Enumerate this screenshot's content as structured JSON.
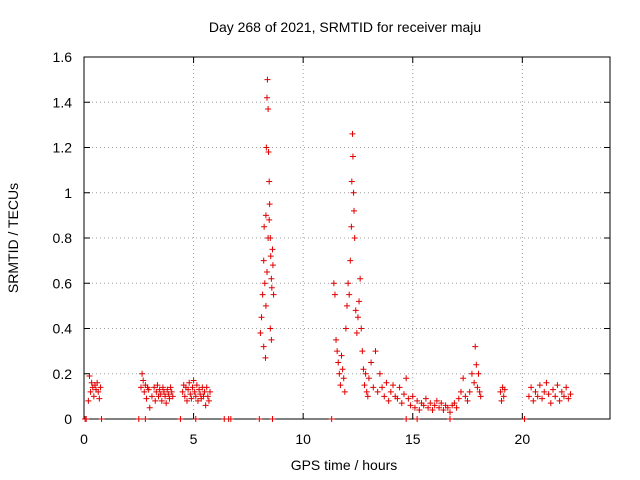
{
  "chart_data": {
    "type": "scatter",
    "title": "Day 268 of 2021, SRMTID for receiver maju",
    "xlabel": "GPS time / hours",
    "ylabel": "SRMTID / TECUs",
    "xlim": [
      0,
      24
    ],
    "ylim": [
      0,
      1.6
    ],
    "xticks": [
      0,
      5,
      10,
      15,
      20
    ],
    "xtick_labels": [
      "0",
      "5",
      "10",
      "15",
      "20"
    ],
    "yticks": [
      0,
      0.2,
      0.4,
      0.6,
      0.8,
      1.0,
      1.2,
      1.4,
      1.6
    ],
    "ytick_labels": [
      "0",
      "0.2",
      "0.4",
      "0.6",
      "0.8",
      "1",
      "1.2",
      "1.4",
      "1.6"
    ],
    "grid": true,
    "marker": "+",
    "color": "#e00000",
    "series": [
      {
        "name": "SRMTID",
        "points": [
          [
            0.05,
            0.0
          ],
          [
            0.1,
            0.0
          ],
          [
            0.2,
            0.08
          ],
          [
            0.25,
            0.19
          ],
          [
            0.3,
            0.12
          ],
          [
            0.35,
            0.16
          ],
          [
            0.4,
            0.14
          ],
          [
            0.45,
            0.1
          ],
          [
            0.5,
            0.15
          ],
          [
            0.55,
            0.13
          ],
          [
            0.6,
            0.16
          ],
          [
            0.65,
            0.12
          ],
          [
            0.7,
            0.09
          ],
          [
            0.75,
            0.14
          ],
          [
            0.8,
            0.0
          ],
          [
            2.5,
            0.0
          ],
          [
            2.6,
            0.14
          ],
          [
            2.65,
            0.2
          ],
          [
            2.7,
            0.17
          ],
          [
            2.75,
            0.12
          ],
          [
            2.8,
            0.15
          ],
          [
            2.85,
            0.09
          ],
          [
            2.9,
            0.14
          ],
          [
            2.95,
            0.13
          ],
          [
            3.0,
            0.05
          ],
          [
            3.1,
            0.1
          ],
          [
            3.2,
            0.14
          ],
          [
            3.25,
            0.08
          ],
          [
            3.3,
            0.12
          ],
          [
            3.35,
            0.15
          ],
          [
            3.4,
            0.1
          ],
          [
            3.45,
            0.13
          ],
          [
            3.5,
            0.11
          ],
          [
            3.55,
            0.08
          ],
          [
            3.6,
            0.14
          ],
          [
            3.65,
            0.12
          ],
          [
            3.7,
            0.1
          ],
          [
            3.75,
            0.07
          ],
          [
            3.8,
            0.13
          ],
          [
            3.85,
            0.11
          ],
          [
            3.9,
            0.09
          ],
          [
            3.95,
            0.14
          ],
          [
            4.0,
            0.12
          ],
          [
            4.05,
            0.1
          ],
          [
            2.8,
            0.0
          ],
          [
            4.4,
            0.0
          ],
          [
            4.5,
            0.12
          ],
          [
            4.55,
            0.15
          ],
          [
            4.6,
            0.1
          ],
          [
            4.65,
            0.14
          ],
          [
            4.7,
            0.08
          ],
          [
            4.75,
            0.13
          ],
          [
            4.8,
            0.16
          ],
          [
            4.85,
            0.11
          ],
          [
            4.9,
            0.09
          ],
          [
            4.95,
            0.14
          ],
          [
            5.0,
            0.17
          ],
          [
            5.05,
            0.12
          ],
          [
            5.1,
            0.1
          ],
          [
            5.15,
            0.15
          ],
          [
            5.2,
            0.08
          ],
          [
            5.25,
            0.13
          ],
          [
            5.3,
            0.11
          ],
          [
            5.35,
            0.09
          ],
          [
            5.4,
            0.14
          ],
          [
            5.45,
            0.1
          ],
          [
            5.5,
            0.12
          ],
          [
            5.55,
            0.06
          ],
          [
            5.6,
            0.14
          ],
          [
            5.65,
            0.1
          ],
          [
            5.7,
            0.08
          ],
          [
            5.75,
            0.12
          ],
          [
            5.1,
            0.0
          ],
          [
            6.4,
            0.0
          ],
          [
            6.6,
            0.0
          ],
          [
            6.7,
            0.0
          ],
          [
            8.0,
            0.0
          ],
          [
            8.05,
            0.38
          ],
          [
            8.1,
            0.45
          ],
          [
            8.15,
            0.55
          ],
          [
            8.2,
            0.7
          ],
          [
            8.22,
            0.85
          ],
          [
            8.25,
            0.6
          ],
          [
            8.28,
            0.27
          ],
          [
            8.3,
            0.9
          ],
          [
            8.32,
            1.2
          ],
          [
            8.35,
            1.42
          ],
          [
            8.37,
            1.5
          ],
          [
            8.4,
            1.37
          ],
          [
            8.42,
            1.18
          ],
          [
            8.45,
            1.05
          ],
          [
            8.47,
            0.95
          ],
          [
            8.5,
            0.8
          ],
          [
            8.52,
            0.72
          ],
          [
            8.55,
            0.62
          ],
          [
            8.57,
            0.58
          ],
          [
            8.6,
            0.75
          ],
          [
            8.62,
            0.68
          ],
          [
            8.65,
            0.55
          ],
          [
            8.3,
            0.5
          ],
          [
            8.35,
            0.65
          ],
          [
            8.4,
            0.8
          ],
          [
            8.45,
            0.88
          ],
          [
            8.5,
            0.4
          ],
          [
            8.55,
            0.35
          ],
          [
            8.2,
            0.32
          ],
          [
            8.6,
            0.0
          ],
          [
            11.3,
            0.0
          ],
          [
            11.4,
            0.6
          ],
          [
            11.45,
            0.55
          ],
          [
            11.5,
            0.35
          ],
          [
            11.55,
            0.3
          ],
          [
            11.6,
            0.25
          ],
          [
            11.65,
            0.2
          ],
          [
            11.7,
            0.15
          ],
          [
            11.75,
            0.28
          ],
          [
            11.8,
            0.22
          ],
          [
            11.85,
            0.18
          ],
          [
            11.9,
            0.12
          ],
          [
            11.95,
            0.4
          ],
          [
            12.0,
            0.5
          ],
          [
            12.05,
            0.6
          ],
          [
            12.1,
            0.55
          ],
          [
            12.15,
            0.7
          ],
          [
            12.2,
            0.85
          ],
          [
            12.22,
            1.05
          ],
          [
            12.25,
            1.26
          ],
          [
            12.27,
            1.16
          ],
          [
            12.3,
            1.0
          ],
          [
            12.32,
            0.92
          ],
          [
            12.35,
            0.8
          ],
          [
            12.4,
            0.48
          ],
          [
            12.45,
            0.38
          ],
          [
            12.5,
            0.45
          ],
          [
            12.55,
            0.52
          ],
          [
            12.6,
            0.62
          ],
          [
            12.65,
            0.4
          ],
          [
            12.7,
            0.3
          ],
          [
            12.75,
            0.22
          ],
          [
            12.8,
            0.15
          ],
          [
            12.85,
            0.2
          ],
          [
            12.9,
            0.12
          ],
          [
            12.95,
            0.1
          ],
          [
            13.0,
            0.18
          ],
          [
            13.1,
            0.25
          ],
          [
            13.2,
            0.14
          ],
          [
            13.3,
            0.3
          ],
          [
            13.4,
            0.12
          ],
          [
            13.5,
            0.2
          ],
          [
            13.6,
            0.14
          ],
          [
            13.7,
            0.1
          ],
          [
            13.8,
            0.16
          ],
          [
            13.9,
            0.08
          ],
          [
            14.0,
            0.12
          ],
          [
            14.1,
            0.15
          ],
          [
            14.2,
            0.1
          ],
          [
            14.3,
            0.09
          ],
          [
            14.4,
            0.14
          ],
          [
            14.5,
            0.07
          ],
          [
            14.6,
            0.11
          ],
          [
            14.7,
            0.18
          ],
          [
            14.8,
            0.09
          ],
          [
            14.9,
            0.06
          ],
          [
            15.0,
            0.1
          ],
          [
            15.1,
            0.05
          ],
          [
            15.2,
            0.08
          ],
          [
            15.3,
            0.04
          ],
          [
            15.4,
            0.07
          ],
          [
            15.5,
            0.06
          ],
          [
            15.6,
            0.09
          ],
          [
            15.7,
            0.05
          ],
          [
            15.8,
            0.07
          ],
          [
            15.9,
            0.04
          ],
          [
            16.0,
            0.06
          ],
          [
            16.1,
            0.08
          ],
          [
            16.2,
            0.05
          ],
          [
            16.3,
            0.07
          ],
          [
            16.4,
            0.04
          ],
          [
            16.5,
            0.06
          ],
          [
            16.6,
            0.05
          ],
          [
            16.7,
            0.03
          ],
          [
            16.8,
            0.06
          ],
          [
            16.9,
            0.07
          ],
          [
            17.0,
            0.05
          ],
          [
            17.1,
            0.09
          ],
          [
            17.2,
            0.12
          ],
          [
            17.3,
            0.18
          ],
          [
            17.4,
            0.1
          ],
          [
            17.5,
            0.08
          ],
          [
            17.6,
            0.12
          ],
          [
            17.7,
            0.2
          ],
          [
            17.8,
            0.16
          ],
          [
            17.85,
            0.32
          ],
          [
            17.9,
            0.24
          ],
          [
            17.95,
            0.14
          ],
          [
            18.0,
            0.2
          ],
          [
            18.05,
            0.12
          ],
          [
            18.1,
            0.1
          ],
          [
            19.0,
            0.12
          ],
          [
            19.05,
            0.08
          ],
          [
            19.1,
            0.14
          ],
          [
            19.15,
            0.1
          ],
          [
            19.2,
            0.13
          ],
          [
            20.3,
            0.1
          ],
          [
            20.4,
            0.14
          ],
          [
            20.5,
            0.08
          ],
          [
            20.6,
            0.12
          ],
          [
            20.7,
            0.1
          ],
          [
            20.8,
            0.15
          ],
          [
            20.9,
            0.09
          ],
          [
            21.0,
            0.12
          ],
          [
            21.1,
            0.16
          ],
          [
            21.2,
            0.11
          ],
          [
            21.3,
            0.07
          ],
          [
            21.4,
            0.13
          ],
          [
            21.5,
            0.1
          ],
          [
            21.6,
            0.15
          ],
          [
            21.7,
            0.08
          ],
          [
            21.8,
            0.12
          ],
          [
            21.9,
            0.1
          ],
          [
            22.0,
            0.14
          ],
          [
            22.1,
            0.09
          ],
          [
            22.2,
            0.11
          ],
          [
            20.1,
            0.0
          ],
          [
            15.2,
            0.0
          ],
          [
            16.7,
            0.0
          ],
          [
            14.7,
            0.0
          ]
        ]
      }
    ]
  }
}
